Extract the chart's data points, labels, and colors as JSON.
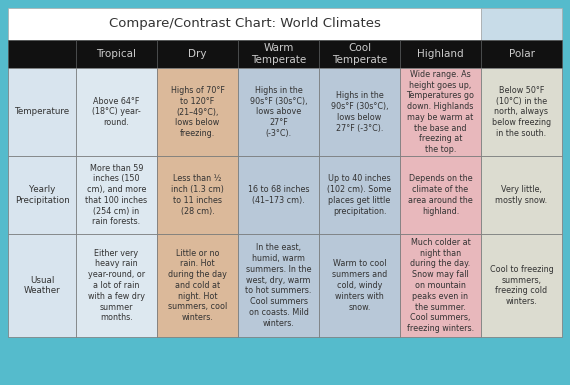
{
  "title": "Compare/Contrast Chart: World Climates",
  "col_headers": [
    "Tropical",
    "Dry",
    "Warm\nTemperate",
    "Cool\nTemperate",
    "Highland",
    "Polar"
  ],
  "row_headers": [
    "Temperature",
    "Yearly\nPrecipitation",
    "Usual\nWeather"
  ],
  "cells": [
    [
      "Above 64°F\n(18°C) year-\nround.",
      "Highs of 70°F\nto 120°F\n(21–49°C),\nlows below\nfreezing.",
      "Highs in the\n90s°F (30s°C),\nlows above\n27°F\n(-3°C).",
      "Highs in the\n90s°F (30s°C),\nlows below\n27°F (-3°C).",
      "Wide range. As\nheight goes up,\nTemperatures go\ndown. Highlands\nmay be warm at\nthe base and\nfreezing at\nthe top.",
      "Below 50°F\n(10°C) in the\nnorth, always\nbelow freezing\nin the south."
    ],
    [
      "More than 59\ninches (150\ncm), and more\nthat 100 inches\n(254 cm) in\nrain forests.",
      "Less than ½\ninch (1.3 cm)\nto 11 inches\n(28 cm).",
      "16 to 68 inches\n(41–173 cm).",
      "Up to 40 inches\n(102 cm). Some\nplaces get little\nprecipitation.",
      "Depends on the\nclimate of the\narea around the\nhighland.",
      "Very little,\nmostly snow."
    ],
    [
      "Either very\nheavy rain\nyear-round, or\na lot of rain\nwith a few dry\nsummer\nmonths.",
      "Little or no\nrain. Hot\nduring the day\nand cold at\nnight. Hot\nsummers, cool\nwinters.",
      "In the east,\nhumid, warm\nsummers. In the\nwest, dry, warm\nto hot summers.\nCool summers\non coasts. Mild\nwinters.",
      "Warm to cool\nsummers and\ncold, windy\nwinters with\nsnow.",
      "Much colder at\nnight than\nduring the day.\nSnow may fall\non mountain\npeaks even in\nthe summer.\nCool summers,\nfreezing winters.",
      "Cool to freezing\nsummers,\nfreezing cold\nwinters."
    ]
  ],
  "cell_colors": [
    [
      "#dde8f0",
      "#dbb99a",
      "#b8c8d8",
      "#b8c8d8",
      "#e8b8bc",
      "#dcdcd0"
    ],
    [
      "#dde8f0",
      "#dbb99a",
      "#b8c8d8",
      "#b8c8d8",
      "#e8b8bc",
      "#dcdcd0"
    ],
    [
      "#dde8f0",
      "#dbb99a",
      "#b8c8d8",
      "#b8c8d8",
      "#e8b8bc",
      "#dcdcd0"
    ]
  ],
  "row_header_color": "#d8e4ee",
  "header_bg": "#111111",
  "header_text": "#CCCCCC",
  "title_bg": "#FFFFFF",
  "title_right_bg": "#c8dce8",
  "title_text": "#333333",
  "outer_bg": "#55BBCC",
  "border_color": "#777777",
  "text_color": "#333333",
  "font_size": 5.8,
  "header_font_size": 7.5,
  "title_font_size": 9.5
}
